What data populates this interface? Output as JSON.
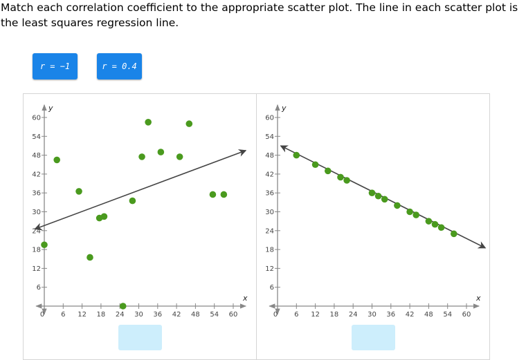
{
  "prompt": "Match each correlation coefficient to the appropriate scatter plot. The line in each scatter plot is the least squares regression line.",
  "tiles": [
    {
      "label": "r = −1"
    },
    {
      "label": "r = 0.4"
    }
  ],
  "colors": {
    "tile": "#1a84e8",
    "point": "#4a9a1e",
    "axis": "#888888",
    "line": "#444444",
    "drop_zone": "#cdeefc"
  },
  "chart_data": [
    {
      "type": "scatter",
      "title": "",
      "xlabel": "x",
      "ylabel": "y",
      "xlim": [
        0,
        60
      ],
      "ylim": [
        0,
        60
      ],
      "x_ticks": [
        "0",
        "6",
        "12",
        "18",
        "24",
        "30",
        "36",
        "42",
        "48",
        "54",
        "60"
      ],
      "y_ticks": [
        "6",
        "12",
        "18",
        "24",
        "30",
        "36",
        "42",
        "48",
        "54",
        "60"
      ],
      "grid": false,
      "points": [
        {
          "x": 0,
          "y": 19.5
        },
        {
          "x": 4,
          "y": 46.5
        },
        {
          "x": 11,
          "y": 36.5
        },
        {
          "x": 14.5,
          "y": 15.5
        },
        {
          "x": 17.5,
          "y": 28
        },
        {
          "x": 19,
          "y": 28.5
        },
        {
          "x": 25,
          "y": 0
        },
        {
          "x": 28,
          "y": 33.5
        },
        {
          "x": 31,
          "y": 47.5
        },
        {
          "x": 33,
          "y": 58.5
        },
        {
          "x": 37,
          "y": 49
        },
        {
          "x": 43,
          "y": 47.5
        },
        {
          "x": 46,
          "y": 58
        },
        {
          "x": 53.5,
          "y": 35.5
        },
        {
          "x": 57,
          "y": 35.5
        }
      ],
      "regression_line": {
        "from": [
          -3,
          24.5
        ],
        "to": [
          64,
          49.5
        ]
      }
    },
    {
      "type": "scatter",
      "title": "",
      "xlabel": "x",
      "ylabel": "y",
      "xlim": [
        0,
        60
      ],
      "ylim": [
        0,
        60
      ],
      "x_ticks": [
        "0",
        "6",
        "12",
        "18",
        "24",
        "30",
        "36",
        "42",
        "48",
        "54",
        "60"
      ],
      "y_ticks": [
        "6",
        "12",
        "18",
        "24",
        "30",
        "36",
        "42",
        "48",
        "54",
        "60"
      ],
      "grid": false,
      "points": [
        {
          "x": 6,
          "y": 48
        },
        {
          "x": 12,
          "y": 45
        },
        {
          "x": 16,
          "y": 43
        },
        {
          "x": 20,
          "y": 41
        },
        {
          "x": 22,
          "y": 40
        },
        {
          "x": 30,
          "y": 36
        },
        {
          "x": 32,
          "y": 35
        },
        {
          "x": 34,
          "y": 34
        },
        {
          "x": 38,
          "y": 32
        },
        {
          "x": 42,
          "y": 30
        },
        {
          "x": 44,
          "y": 29
        },
        {
          "x": 48,
          "y": 27
        },
        {
          "x": 50,
          "y": 26
        },
        {
          "x": 52,
          "y": 25
        },
        {
          "x": 56,
          "y": 23
        }
      ],
      "regression_line": {
        "from": [
          1,
          51
        ],
        "to": [
          66,
          18.5
        ]
      }
    }
  ]
}
